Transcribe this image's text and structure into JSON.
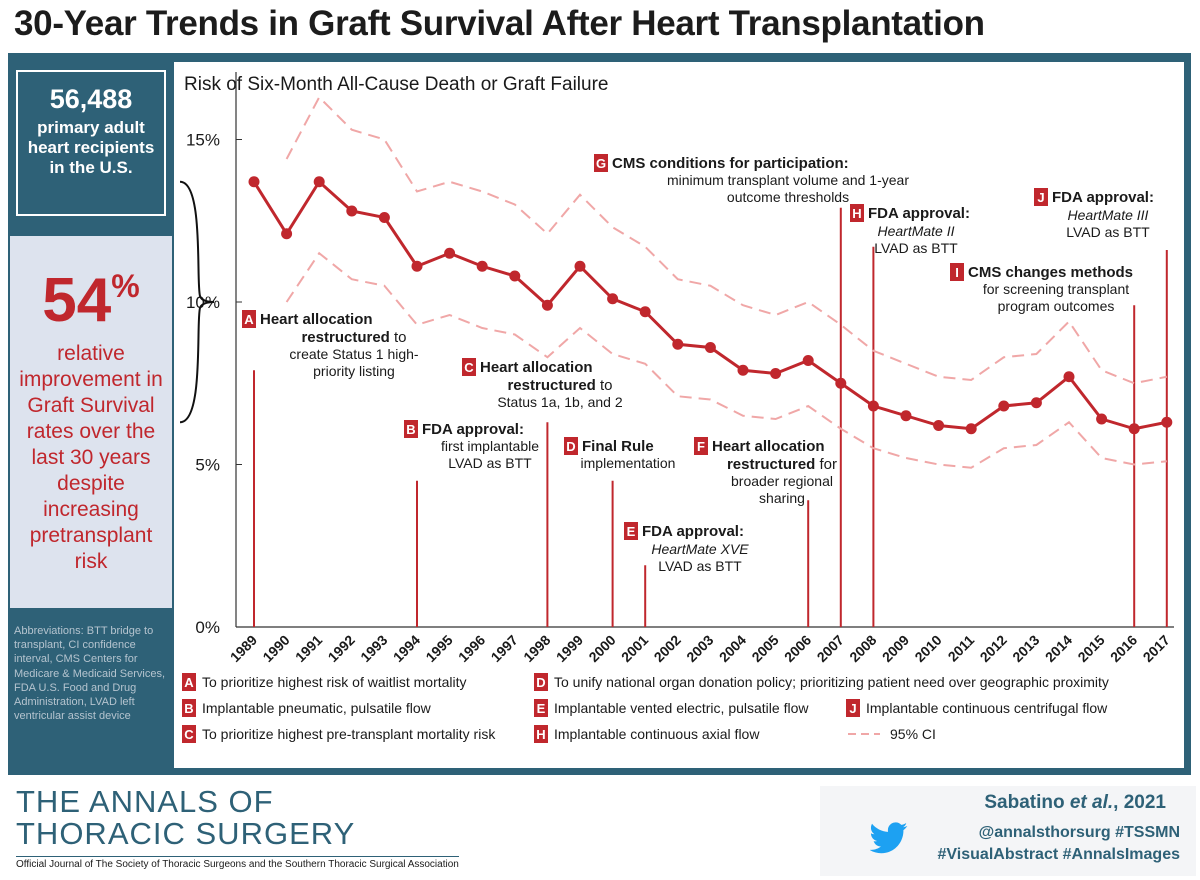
{
  "title": "30-Year Trends in Graft Survival After Heart Transplantation",
  "left_panel": {
    "count_value": "56,488",
    "count_text": "primary adult heart recipients in the U.S.",
    "pct_value": "54",
    "pct_symbol": "%",
    "pct_text": "relative improvement in Graft Survival rates over the last 30 years despite increasing pretransplant risk",
    "abbreviations": "Abbreviations: BTT bridge to transplant, CI confidence interval, CMS Centers for Medicare & Medicaid Services, FDA U.S. Food and Drug Administration, LVAD left ventricular assist device"
  },
  "chart_data": {
    "type": "line",
    "title": "Risk of Six-Month All-Cause Death or Graft Failure",
    "x": [
      1989,
      1990,
      1991,
      1992,
      1993,
      1994,
      1995,
      1996,
      1997,
      1998,
      1999,
      2000,
      2001,
      2002,
      2003,
      2004,
      2005,
      2006,
      2007,
      2008,
      2009,
      2010,
      2011,
      2012,
      2013,
      2014,
      2015,
      2016,
      2017
    ],
    "x_tick_labels": [
      "1989",
      "1990",
      "1991",
      "1992",
      "1993",
      "1994",
      "1995",
      "1996",
      "1997",
      "1998",
      "1999",
      "2000",
      "2001",
      "2002",
      "2003",
      "2004",
      "2005",
      "2006",
      "2007",
      "2008",
      "2009",
      "2010",
      "2011",
      "2012",
      "2013",
      "2014",
      "2015",
      "2016",
      "2017"
    ],
    "y_ticks": [
      0,
      5,
      10,
      15
    ],
    "y_tick_labels": [
      "0%",
      "5%",
      "10%",
      "15%"
    ],
    "ylim": [
      0,
      16
    ],
    "grid": false,
    "series": [
      {
        "role": "estimate",
        "color": "#c0272d",
        "values": [
          13.7,
          12.1,
          13.7,
          12.8,
          12.6,
          11.1,
          11.5,
          11.1,
          10.8,
          9.9,
          11.1,
          10.1,
          9.7,
          8.7,
          8.6,
          7.9,
          7.8,
          8.2,
          7.5,
          6.8,
          6.5,
          6.2,
          6.1,
          6.8,
          6.9,
          7.7,
          6.4,
          6.1,
          6.3
        ]
      },
      {
        "role": "ci_upper",
        "color": "#f0a7a7",
        "values": [
          null,
          14.4,
          16.3,
          15.3,
          15.0,
          13.4,
          13.7,
          13.4,
          13.0,
          12.1,
          13.3,
          12.3,
          11.7,
          10.7,
          10.5,
          9.9,
          9.6,
          10.0,
          9.3,
          8.5,
          8.1,
          7.7,
          7.6,
          8.3,
          8.4,
          9.4,
          7.9,
          7.5,
          7.7
        ]
      },
      {
        "role": "ci_lower",
        "color": "#f0a7a7",
        "values": [
          null,
          10.0,
          11.5,
          10.7,
          10.5,
          9.3,
          9.6,
          9.2,
          9.0,
          8.3,
          9.2,
          8.4,
          8.1,
          7.1,
          7.0,
          6.5,
          6.4,
          6.8,
          6.1,
          5.5,
          5.2,
          5.0,
          4.9,
          5.5,
          5.6,
          6.3,
          5.2,
          5.0,
          5.1
        ]
      }
    ],
    "events": [
      {
        "letter": "A",
        "year": 1989,
        "line_top": 7.9,
        "title": "Heart allocation",
        "title2": "restructured",
        "rest": " to",
        "lines": [
          "create Status 1 high-",
          "priority listing"
        ]
      },
      {
        "letter": "B",
        "year": 1994,
        "line_top": 4.5,
        "title": "FDA approval:",
        "title2": "",
        "rest": "",
        "lines": [
          "first implantable",
          "LVAD as BTT"
        ]
      },
      {
        "letter": "C",
        "year": 1998,
        "line_top": 6.3,
        "title": "Heart allocation",
        "title2": "restructured",
        "rest": " to",
        "lines": [
          "Status 1a, 1b, and 2"
        ]
      },
      {
        "letter": "D",
        "year": 2000,
        "line_top": 4.5,
        "title": "Final Rule",
        "title2": "",
        "rest": "",
        "lines": [
          "implementation"
        ]
      },
      {
        "letter": "E",
        "year": 2001,
        "line_top": 1.9,
        "title": "FDA approval:",
        "title2": "",
        "rest": "",
        "italic": "HeartMate XVE",
        "lines": [
          "LVAD as BTT"
        ]
      },
      {
        "letter": "F",
        "year": 2006,
        "line_top": 3.9,
        "title": "Heart allocation",
        "title2": "restructured",
        "rest": " for",
        "lines": [
          "broader regional",
          "sharing"
        ]
      },
      {
        "letter": "G",
        "year": 2007,
        "line_top": 12.9,
        "title": "CMS conditions for participation:",
        "title2": "",
        "rest": "",
        "lines": [
          "minimum transplant volume and 1-year",
          "outcome thresholds"
        ]
      },
      {
        "letter": "H",
        "year": 2008,
        "line_top": 11.7,
        "title": "FDA approval:",
        "title2": "",
        "rest": "",
        "italic": "HeartMate II",
        "lines": [
          "LVAD as BTT"
        ]
      },
      {
        "letter": "I",
        "year": 2016,
        "line_top": 9.9,
        "title": "CMS changes methods",
        "title2": "",
        "rest": "",
        "lines": [
          "for screening transplant",
          "program outcomes"
        ]
      },
      {
        "letter": "J",
        "year": 2017,
        "line_top": 11.6,
        "title": "FDA approval:",
        "title2": "",
        "rest": "",
        "italic": "HeartMate III",
        "lines": [
          "LVAD as BTT"
        ]
      }
    ],
    "legend": [
      {
        "letter": "A",
        "text": "To prioritize highest risk of waitlist mortality"
      },
      {
        "letter": "B",
        "text": "Implantable pneumatic, pulsatile flow"
      },
      {
        "letter": "C",
        "text": "To prioritize highest pre-transplant mortality risk"
      },
      {
        "letter": "D",
        "text": "To unify national organ donation policy; prioritizing patient need over geographic proximity"
      },
      {
        "letter": "E",
        "text": "Implantable vented electric, pulsatile flow"
      },
      {
        "letter": "H",
        "text": "Implantable continuous axial flow"
      },
      {
        "letter": "J",
        "text": "Implantable continuous centrifugal flow"
      },
      {
        "letter": "",
        "text": "95% CI"
      }
    ],
    "legend_placement": "bottom"
  },
  "footer": {
    "journal_line1": "THE ANNALS OF",
    "journal_line2": "THORACIC SURGERY",
    "journal_sub": "Official Journal of The Society of Thoracic Surgeons and the Southern Thoracic Surgical Association",
    "author_name": "Sabatino ",
    "author_etal": "et al.",
    "author_year": ", 2021",
    "tag1": "@annalsthorsurg #TSSMN",
    "tag2": "#VisualAbstract #AnnalsImages",
    "icon": "twitter-bird-icon",
    "icon_color": "#1da1f2"
  },
  "colors": {
    "brand": "#2e6177",
    "accent": "#c0272d",
    "ci": "#f0a7a7",
    "pct_bg": "#dde3ee"
  }
}
